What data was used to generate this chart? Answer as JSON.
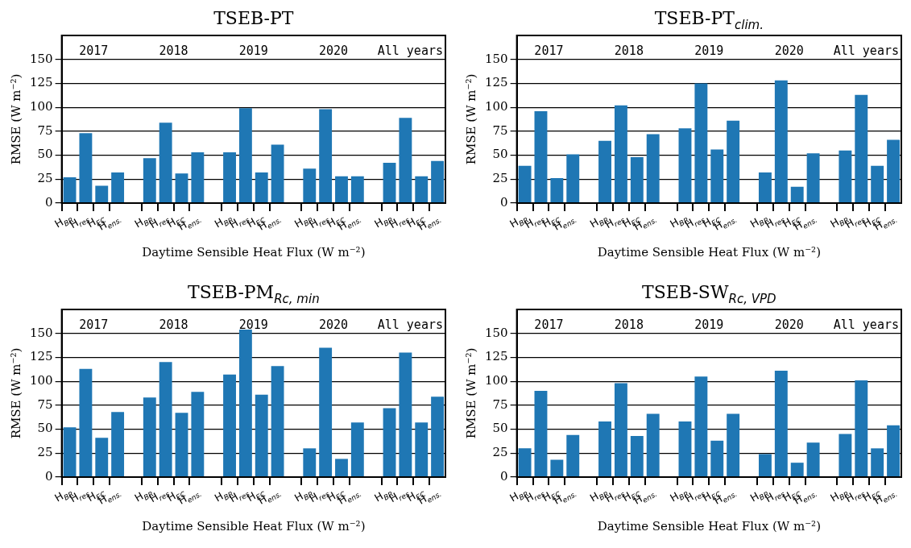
{
  "chart_data": [
    {
      "type": "bar",
      "title": "TSEB-PT",
      "xlabel": "Daytime Sensible Heat Flux (W m⁻²)",
      "ylabel": "RMSE (W m⁻²)",
      "categories": [
        "H$_{BR}$",
        "H$_{res}$",
        "H$_{EC}$",
        "H$_{ens.}$",
        null,
        "H$_{BR}$",
        "H$_{res}$",
        "H$_{EC}$",
        "H$_{ens.}$",
        null,
        "H$_{BR}$",
        "H$_{res}$",
        "H$_{EC}$",
        "H$_{ens.}$",
        null,
        "H$_{BR}$",
        "H$_{res}$",
        "H$_{EC}$",
        "H$_{ens.}$",
        null,
        "H$_{BR}$",
        "H$_{res}$",
        "H$_{EC}$",
        "H$_{ens.}$"
      ],
      "values": [
        27,
        73,
        18,
        32,
        null,
        47,
        84,
        31,
        53,
        null,
        53,
        99,
        32,
        61,
        null,
        36,
        98,
        28,
        28,
        null,
        42,
        89,
        28,
        44
      ],
      "color": "#1f77b4",
      "ylim": [
        0,
        175
      ],
      "yticks": [
        0,
        25,
        50,
        75,
        100,
        125,
        150
      ],
      "grid": "y",
      "annotations": [
        "2017",
        "2018",
        "2019",
        "2020",
        "All years"
      ]
    },
    {
      "type": "bar",
      "title": "TSEB-PT$_{clim.}$",
      "xlabel": "Daytime Sensible Heat Flux (W m⁻²)",
      "ylabel": "RMSE (W m⁻²)",
      "categories": [
        "H$_{BR}$",
        "H$_{res}$",
        "H$_{EC}$",
        "H$_{ens.}$",
        null,
        "H$_{BR}$",
        "H$_{res}$",
        "H$_{EC}$",
        "H$_{ens.}$",
        null,
        "H$_{BR}$",
        "H$_{res}$",
        "H$_{EC}$",
        "H$_{ens.}$",
        null,
        "H$_{BR}$",
        "H$_{res}$",
        "H$_{EC}$",
        "H$_{ens.}$",
        null,
        "H$_{BR}$",
        "H$_{res}$",
        "H$_{EC}$",
        "H$_{ens.}$"
      ],
      "values": [
        39,
        96,
        26,
        51,
        null,
        65,
        102,
        48,
        72,
        null,
        78,
        125,
        56,
        86,
        null,
        32,
        128,
        17,
        52,
        null,
        55,
        113,
        39,
        66
      ],
      "color": "#1f77b4",
      "ylim": [
        0,
        175
      ],
      "yticks": [
        0,
        25,
        50,
        75,
        100,
        125,
        150
      ],
      "grid": "y",
      "annotations": [
        "2017",
        "2018",
        "2019",
        "2020",
        "All years"
      ]
    },
    {
      "type": "bar",
      "title": "TSEB-PM$_{Rc, min}$",
      "xlabel": "Daytime Sensible Heat Flux (W m⁻²)",
      "ylabel": "RMSE (W m⁻²)",
      "categories": [
        "H$_{BR}$",
        "H$_{res}$",
        "H$_{EC}$",
        "H$_{ens.}$",
        null,
        "H$_{BR}$",
        "H$_{res}$",
        "H$_{EC}$",
        "H$_{ens.}$",
        null,
        "H$_{BR}$",
        "H$_{res}$",
        "H$_{EC}$",
        "H$_{ens.}$",
        null,
        "H$_{BR}$",
        "H$_{res}$",
        "H$_{EC}$",
        "H$_{ens.}$",
        null,
        "H$_{BR}$",
        "H$_{res}$",
        "H$_{EC}$",
        "H$_{ens.}$"
      ],
      "values": [
        52,
        113,
        41,
        68,
        null,
        83,
        120,
        67,
        89,
        null,
        107,
        154,
        86,
        116,
        null,
        30,
        135,
        19,
        57,
        null,
        72,
        130,
        57,
        84
      ],
      "color": "#1f77b4",
      "ylim": [
        0,
        175
      ],
      "yticks": [
        0,
        25,
        50,
        75,
        100,
        125,
        150
      ],
      "grid": "y",
      "annotations": [
        "2017",
        "2018",
        "2019",
        "2020",
        "All years"
      ]
    },
    {
      "type": "bar",
      "title": "TSEB-SW$_{Rc, VPD}$",
      "xlabel": "Daytime Sensible Heat Flux (W m⁻²)",
      "ylabel": "RMSE (W m⁻²)",
      "categories": [
        "H$_{BR}$",
        "H$_{res}$",
        "H$_{EC}$",
        "H$_{ens.}$",
        null,
        "H$_{BR}$",
        "H$_{res}$",
        "H$_{EC}$",
        "H$_{ens.}$",
        null,
        "H$_{BR}$",
        "H$_{res}$",
        "H$_{EC}$",
        "H$_{ens.}$",
        null,
        "H$_{BR}$",
        "H$_{res}$",
        "H$_{EC}$",
        "H$_{ens.}$",
        null,
        "H$_{BR}$",
        "H$_{res}$",
        "H$_{EC}$",
        "H$_{ens.}$"
      ],
      "values": [
        30,
        90,
        18,
        44,
        null,
        58,
        98,
        43,
        66,
        null,
        58,
        105,
        38,
        66,
        null,
        24,
        111,
        15,
        36,
        null,
        45,
        101,
        30,
        54
      ],
      "color": "#1f77b4",
      "ylim": [
        0,
        175
      ],
      "yticks": [
        0,
        25,
        50,
        75,
        100,
        125,
        150
      ],
      "grid": "y",
      "annotations": [
        "2017",
        "2018",
        "2019",
        "2020",
        "All years"
      ]
    }
  ]
}
